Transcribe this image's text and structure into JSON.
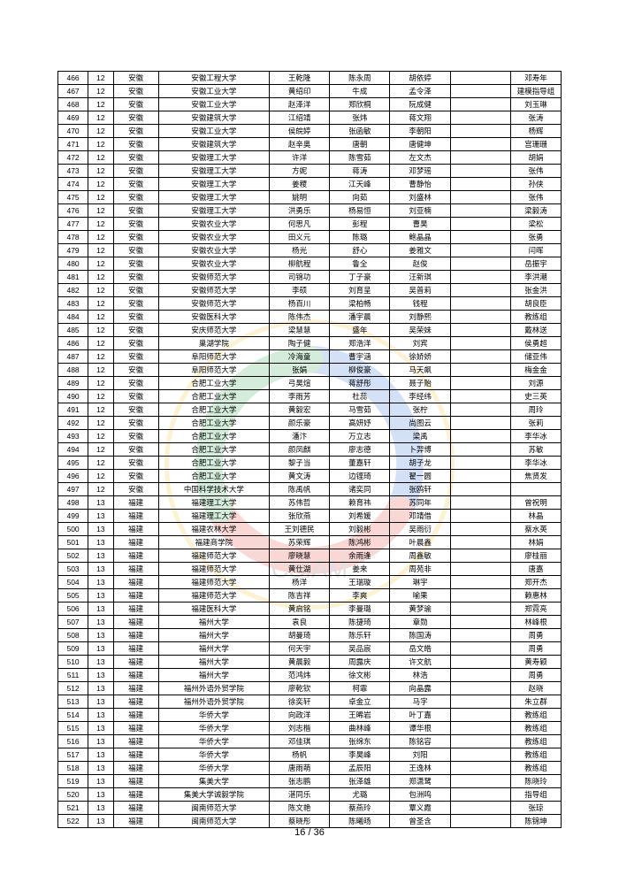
{
  "page_label": "16 / 36",
  "watermark_colors": {
    "outer": "#f2c21a",
    "blue": "#2a6fd6",
    "red": "#e53b2c",
    "green": "#2fa84f",
    "text": "#666666"
  },
  "rows": [
    [
      "466",
      "12",
      "安徽",
      "安徽工程大学",
      "王乾隆",
      "陈永周",
      "胡依婷",
      "",
      "邓寿年"
    ],
    [
      "467",
      "12",
      "安徽",
      "安徽工业大学",
      "黄绍印",
      "牛成",
      "孟令泽",
      "",
      "建模指导组"
    ],
    [
      "468",
      "12",
      "安徽",
      "安徽工业大学",
      "赵泽洋",
      "郑欣桐",
      "阮成健",
      "",
      "刘玉琳"
    ],
    [
      "469",
      "12",
      "安徽",
      "安徽建筑大学",
      "江绍靖",
      "张炜",
      "蒋文翔",
      "",
      "张涛"
    ],
    [
      "470",
      "12",
      "安徽",
      "安徽工业大学",
      "侯皖婷",
      "张函敏",
      "李朝阳",
      "",
      "杨辉"
    ],
    [
      "471",
      "12",
      "安徽",
      "安徽建筑大学",
      "赵辛奥",
      "唐朝",
      "唐健坤",
      "",
      "宫珊珊"
    ],
    [
      "472",
      "12",
      "安徽",
      "安徽理工大学",
      "许洋",
      "陈雪茹",
      "左文杰",
      "",
      "胡娟"
    ],
    [
      "473",
      "12",
      "安徽",
      "安徽理工大学",
      "方妮",
      "蒋涛",
      "邓梦瑶",
      "",
      "张伟"
    ],
    [
      "474",
      "12",
      "安徽",
      "安徽理工大学",
      "姜稷",
      "江天峰",
      "曹静怡",
      "",
      "孙侠"
    ],
    [
      "475",
      "12",
      "安徽",
      "安徽理工大学",
      "姚明",
      "向茹",
      "刘盛林",
      "",
      "张伟"
    ],
    [
      "476",
      "12",
      "安徽",
      "安徽理工大学",
      "洪勇乐",
      "杨易恒",
      "刘亚楠",
      "",
      "梁毅涛"
    ],
    [
      "477",
      "12",
      "安徽",
      "安徽农业大学",
      "何思凡",
      "彭程",
      "曹昊",
      "",
      "梁松"
    ],
    [
      "478",
      "12",
      "安徽",
      "安徽农业大学",
      "田义元",
      "陈璐",
      "鲍晶晶",
      "",
      "张勇"
    ],
    [
      "479",
      "12",
      "安徽",
      "安徽农业大学",
      "杨光",
      "舒心",
      "姜雅文",
      "",
      "闫晖"
    ],
    [
      "480",
      "12",
      "安徽",
      "安徽农业大学",
      "柳航程",
      "鲁全",
      "赵俊",
      "",
      "岳振宇"
    ],
    [
      "481",
      "12",
      "安徽",
      "安徽师范大学",
      "司锦功",
      "丁子豪",
      "汪新琪",
      "",
      "李洪潮"
    ],
    [
      "482",
      "12",
      "安徽",
      "安徽师范大学",
      "李硕",
      "刘育呈",
      "吴普莉",
      "",
      "张金洪"
    ],
    [
      "483",
      "12",
      "安徽",
      "安徽师范大学",
      "杨百川",
      "梁柏畅",
      "钱程",
      "",
      "胡良臣"
    ],
    [
      "484",
      "12",
      "安徽",
      "安徽医科大学",
      "陈伟杰",
      "潘宇晨",
      "刘静熙",
      "",
      "教练组"
    ],
    [
      "485",
      "12",
      "安徽",
      "安庆师范大学",
      "梁慧慧",
      "盛年",
      "吴荣妹",
      "",
      "戴林送"
    ],
    [
      "486",
      "12",
      "安徽",
      "巢湖学院",
      "陶子健",
      "郑浩洋",
      "刘宾",
      "",
      "侯勇超"
    ],
    [
      "487",
      "12",
      "安徽",
      "阜阳师范大学",
      "冷海童",
      "曹宇涵",
      "徐娇娇",
      "",
      "储亚伟"
    ],
    [
      "488",
      "12",
      "安徽",
      "阜阳师范大学",
      "张娟",
      "柳俊豪",
      "马天飙",
      "",
      "梅金金"
    ],
    [
      "489",
      "12",
      "安徽",
      "合肥工业大学",
      "弓昊煊",
      "蒋舒彤",
      "聂子贻",
      "",
      "刘源"
    ],
    [
      "490",
      "12",
      "安徽",
      "合肥工业大学",
      "李雨芳",
      "杜蕊",
      "李经纬",
      "",
      "史三英"
    ],
    [
      "491",
      "12",
      "安徽",
      "合肥工业大学",
      "黄毅宏",
      "马雪茹",
      "张柠",
      "",
      "周玲"
    ],
    [
      "492",
      "12",
      "安徽",
      "合肥工业大学",
      "颜乐豪",
      "高妍妤",
      "尚图云",
      "",
      "张莉"
    ],
    [
      "493",
      "12",
      "安徽",
      "合肥工业大学",
      "潘汴",
      "万立志",
      "梁禹",
      "",
      "李华冰"
    ],
    [
      "494",
      "12",
      "安徽",
      "合肥工业大学",
      "颜凤麒",
      "廖志德",
      "卜羿博",
      "",
      "苏敏"
    ],
    [
      "495",
      "12",
      "安徽",
      "合肥工业大学",
      "黎子当",
      "董嘉轩",
      "胡子龙",
      "",
      "李华冰"
    ],
    [
      "496",
      "12",
      "安徽",
      "合肥工业大学",
      "黄文涛",
      "边铿琦",
      "翟一圆",
      "",
      "焦贤发"
    ],
    [
      "497",
      "12",
      "安徽",
      "中国科学技术大学",
      "陈禹帆",
      "诸奕同",
      "张鸥轩",
      "",
      ""
    ],
    [
      "498",
      "13",
      "福建",
      "福建理工大学",
      "苏伟哲",
      "赖育祎",
      "苏同年",
      "",
      "曾祝明"
    ],
    [
      "499",
      "13",
      "福建",
      "福建理工大学",
      "张欣燕",
      "刘希媛",
      "邓靖借",
      "",
      "林晶"
    ],
    [
      "500",
      "13",
      "福建",
      "福建农林大学",
      "王刘德民",
      "刘毅彬",
      "吴雨衍",
      "",
      "蔡水英"
    ],
    [
      "501",
      "13",
      "福建",
      "福建商学院",
      "苏荣辉",
      "陈鸿彬",
      "叶晨鑫",
      "",
      "林娟"
    ],
    [
      "502",
      "13",
      "福建",
      "福建师范大学",
      "廖晓慧",
      "余雨逢",
      "周鑫敏",
      "",
      "廖桂丽"
    ],
    [
      "503",
      "13",
      "福建",
      "福建师范大学",
      "黄仕湖",
      "姜来",
      "周苑非",
      "",
      "唐嘉"
    ],
    [
      "504",
      "13",
      "福建",
      "福建师范大学",
      "杨洋",
      "王瑞璇",
      "琳宇",
      "",
      "郑开杰"
    ],
    [
      "505",
      "13",
      "福建",
      "福建师范大学",
      "陈吉祥",
      "李爽",
      "喻果",
      "",
      "赖惠林"
    ],
    [
      "506",
      "13",
      "福建",
      "福建医科大学",
      "黄启铭",
      "李曼璐",
      "黄梦瑜",
      "",
      "郑霓亮"
    ],
    [
      "507",
      "13",
      "福建",
      "福州大学",
      "袁良",
      "陈捷琦",
      "章勋",
      "",
      "林峰根"
    ],
    [
      "508",
      "13",
      "福建",
      "福州大学",
      "胡曼琦",
      "陈乐轩",
      "陈国涛",
      "",
      "周勇"
    ],
    [
      "509",
      "13",
      "福建",
      "福州大学",
      "何天宇",
      "吴品宸",
      "岳文皓",
      "",
      "周勇"
    ],
    [
      "510",
      "13",
      "福建",
      "福州大学",
      "黄晨毅",
      "周露庆",
      "许文航",
      "",
      "黄寿颖"
    ],
    [
      "511",
      "13",
      "福建",
      "福州大学",
      "范鸿炜",
      "徐文彬",
      "林浩",
      "",
      "周勇"
    ],
    [
      "512",
      "13",
      "福建",
      "福州外语外贸学院",
      "廖乾钦",
      "柯霏",
      "向晶露",
      "",
      "赵晓"
    ],
    [
      "513",
      "13",
      "福建",
      "福州外语外贸学院",
      "徐奕轩",
      "卓金立",
      "马字",
      "",
      "朱立群"
    ],
    [
      "514",
      "13",
      "福建",
      "华侨大学",
      "向政洋",
      "王晞岩",
      "叶丁嘉",
      "",
      "教练组"
    ],
    [
      "515",
      "13",
      "福建",
      "华侨大学",
      "刘志楷",
      "曲林峰",
      "谭华根",
      "",
      "教练组"
    ],
    [
      "516",
      "13",
      "福建",
      "华侨大学",
      "邓佳琪",
      "张绵东",
      "陈铭容",
      "",
      "教练组"
    ],
    [
      "517",
      "13",
      "福建",
      "华侨大学",
      "杨帆",
      "李昊峰",
      "刘阳",
      "",
      "教练组"
    ],
    [
      "518",
      "13",
      "福建",
      "华侨大学",
      "唐雨萌",
      "孟辰阳",
      "王逸林",
      "",
      "教练组"
    ],
    [
      "519",
      "13",
      "福建",
      "集美大学",
      "张志鹏",
      "张泽雄",
      "郑潇鹭",
      "",
      "陈晓玲"
    ],
    [
      "520",
      "13",
      "福建",
      "集美大学诚毅学院",
      "湛同乐",
      "尤璐",
      "包洲鸣",
      "",
      "指导组"
    ],
    [
      "521",
      "13",
      "福建",
      "闽南师范大学",
      "陈文艳",
      "蔡燕玲",
      "覃义霞",
      "",
      "张琼"
    ],
    [
      "522",
      "13",
      "福建",
      "闽南师范大学",
      "蔡晓彤",
      "陈曦旸",
      "曾圣含",
      "",
      "陈锦坤"
    ]
  ]
}
